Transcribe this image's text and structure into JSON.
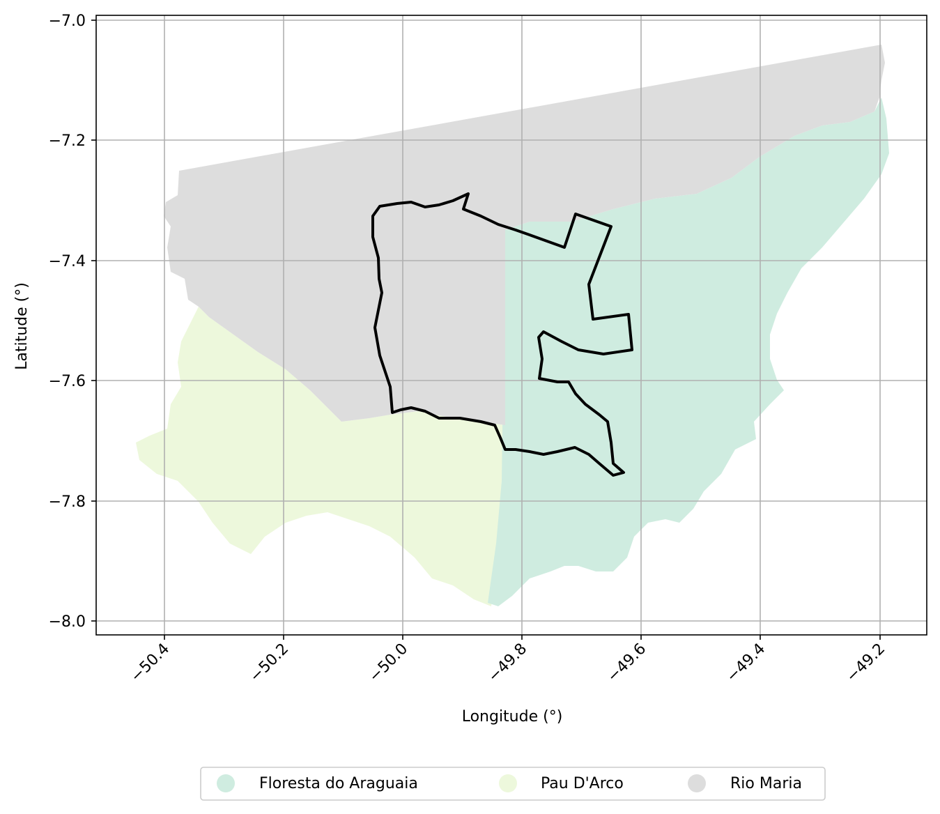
{
  "map": {
    "xlabel": "Longitude (°)",
    "ylabel": "Latitude (°)",
    "x_ticks": [
      "−50.4",
      "−50.2",
      "−50.0",
      "−49.8",
      "−49.6",
      "−49.4",
      "−49.2"
    ],
    "y_ticks": [
      "−7.0",
      "−7.2",
      "−7.4",
      "−7.6",
      "−7.8",
      "−8.0"
    ],
    "grid": true,
    "legend_position": "bottom-center",
    "colors": {
      "floresta": "#cfece0",
      "pau_darco": "#edf8dc",
      "rio_maria": "#dddddd",
      "outline": "#000000",
      "grid": "#b0b0b0"
    },
    "legend": [
      {
        "label": "Floresta do Araguaia",
        "color": "#cfece0"
      },
      {
        "label": "Pau D'Arco",
        "color": "#edf8dc"
      },
      {
        "label": "Rio Maria",
        "color": "#dddddd"
      }
    ]
  }
}
